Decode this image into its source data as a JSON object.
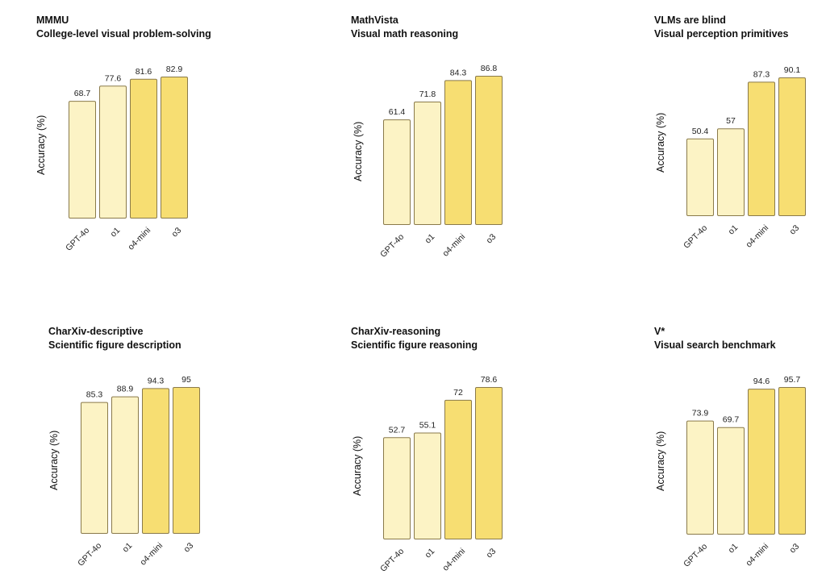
{
  "chart_data": [
    {
      "type": "bar",
      "title": "MMMU",
      "subtitle": "College-level visual problem-solving",
      "ylabel": "Accuracy (%)",
      "categories": [
        "GPT-4o",
        "o1",
        "o4-mini",
        "o3"
      ],
      "values": [
        68.7,
        77.6,
        81.6,
        82.9
      ],
      "value_labels": [
        "68.7",
        "77.6",
        "81.6",
        "82.9"
      ],
      "colors": [
        "#fcf3c5",
        "#fcf3c5",
        "#f7de72",
        "#f7de72"
      ]
    },
    {
      "type": "bar",
      "title": "MathVista",
      "subtitle": "Visual math reasoning",
      "ylabel": "Accuracy (%)",
      "categories": [
        "GPT-4o",
        "o1",
        "o4-mini",
        "o3"
      ],
      "values": [
        61.4,
        71.8,
        84.3,
        86.8
      ],
      "value_labels": [
        "61.4",
        "71.8",
        "84.3",
        "86.8"
      ],
      "colors": [
        "#fcf3c5",
        "#fcf3c5",
        "#f7de72",
        "#f7de72"
      ]
    },
    {
      "type": "bar",
      "title": "VLMs are blind",
      "subtitle": "Visual perception primitives",
      "ylabel": "Accuracy (%)",
      "categories": [
        "GPT-4o",
        "o1",
        "o4-mini",
        "o3"
      ],
      "values": [
        50.4,
        57,
        87.3,
        90.1
      ],
      "value_labels": [
        "50.4",
        "57",
        "87.3",
        "90.1"
      ],
      "colors": [
        "#fcf3c5",
        "#fcf3c5",
        "#f7de72",
        "#f7de72"
      ]
    },
    {
      "type": "bar",
      "title": "CharXiv-descriptive",
      "subtitle": "Scientific figure description",
      "ylabel": "Accuracy (%)",
      "categories": [
        "GPT-4o",
        "o1",
        "o4-mini",
        "o3"
      ],
      "values": [
        85.3,
        88.9,
        94.3,
        95
      ],
      "value_labels": [
        "85.3",
        "88.9",
        "94.3",
        "95"
      ],
      "colors": [
        "#fcf3c5",
        "#fcf3c5",
        "#f7de72",
        "#f7de72"
      ]
    },
    {
      "type": "bar",
      "title": "CharXiv-reasoning",
      "subtitle": "Scientific figure reasoning",
      "ylabel": "Accuracy (%)",
      "categories": [
        "GPT-4o",
        "o1",
        "o4-mini",
        "o3"
      ],
      "values": [
        52.7,
        55.1,
        72,
        78.6
      ],
      "value_labels": [
        "52.7",
        "55.1",
        "72",
        "78.6"
      ],
      "colors": [
        "#fcf3c5",
        "#fcf3c5",
        "#f7de72",
        "#f7de72"
      ]
    },
    {
      "type": "bar",
      "title": "V*",
      "subtitle": "Visual search benchmark",
      "ylabel": "Accuracy (%)",
      "categories": [
        "GPT-4o",
        "o1",
        "o4-mini",
        "o3"
      ],
      "values": [
        73.9,
        69.7,
        94.6,
        95.7
      ],
      "value_labels": [
        "73.9",
        "69.7",
        "94.6",
        "95.7"
      ],
      "colors": [
        "#fcf3c5",
        "#fcf3c5",
        "#f7de72",
        "#f7de72"
      ]
    }
  ],
  "style": {
    "bar_stroke": "#8a7a4a"
  }
}
